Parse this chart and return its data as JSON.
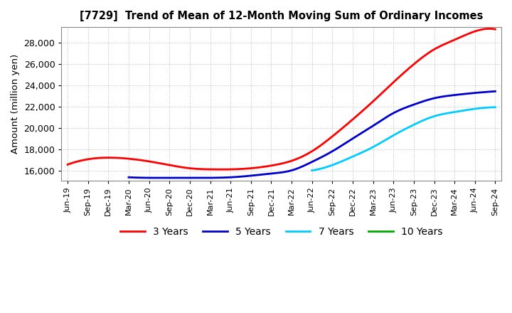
{
  "title": "[7729]  Trend of Mean of 12-Month Moving Sum of Ordinary Incomes",
  "ylabel": "Amount (million yen)",
  "ylim": [
    15000,
    29500
  ],
  "yticks": [
    16000,
    18000,
    20000,
    22000,
    24000,
    26000,
    28000
  ],
  "background_color": "#ffffff",
  "grid_color": "#bbbbbb",
  "legend_entries": [
    "3 Years",
    "5 Years",
    "7 Years",
    "10 Years"
  ],
  "line_colors": [
    "#ff0000",
    "#0000cc",
    "#00ccff",
    "#00aa00"
  ],
  "x_labels": [
    "Jun-19",
    "Sep-19",
    "Dec-19",
    "Mar-20",
    "Jun-20",
    "Sep-20",
    "Dec-20",
    "Mar-21",
    "Jun-21",
    "Sep-21",
    "Dec-21",
    "Mar-22",
    "Jun-22",
    "Sep-22",
    "Dec-22",
    "Mar-23",
    "Jun-23",
    "Sep-23",
    "Dec-23",
    "Mar-24",
    "Jun-24",
    "Sep-24"
  ],
  "series_3y": [
    16550,
    17050,
    17200,
    17100,
    16850,
    16500,
    16200,
    16100,
    16100,
    16200,
    16450,
    16900,
    17800,
    19200,
    20800,
    22500,
    24300,
    26000,
    27400,
    28300,
    29100,
    29300
  ],
  "series_5y": [
    null,
    null,
    null,
    15350,
    15300,
    15300,
    15300,
    15300,
    15350,
    15500,
    15700,
    16000,
    16800,
    17800,
    19000,
    20200,
    21400,
    22200,
    22800,
    23100,
    23300,
    23450
  ],
  "series_7y": [
    null,
    null,
    null,
    null,
    null,
    null,
    null,
    null,
    null,
    null,
    null,
    null,
    16000,
    16500,
    17300,
    18200,
    19300,
    20300,
    21100,
    21500,
    21800,
    21950
  ],
  "series_10y": [
    null,
    null,
    null,
    null,
    null,
    null,
    null,
    null,
    null,
    null,
    null,
    null,
    null,
    null,
    null,
    null,
    null,
    null,
    null,
    null,
    null,
    null
  ]
}
